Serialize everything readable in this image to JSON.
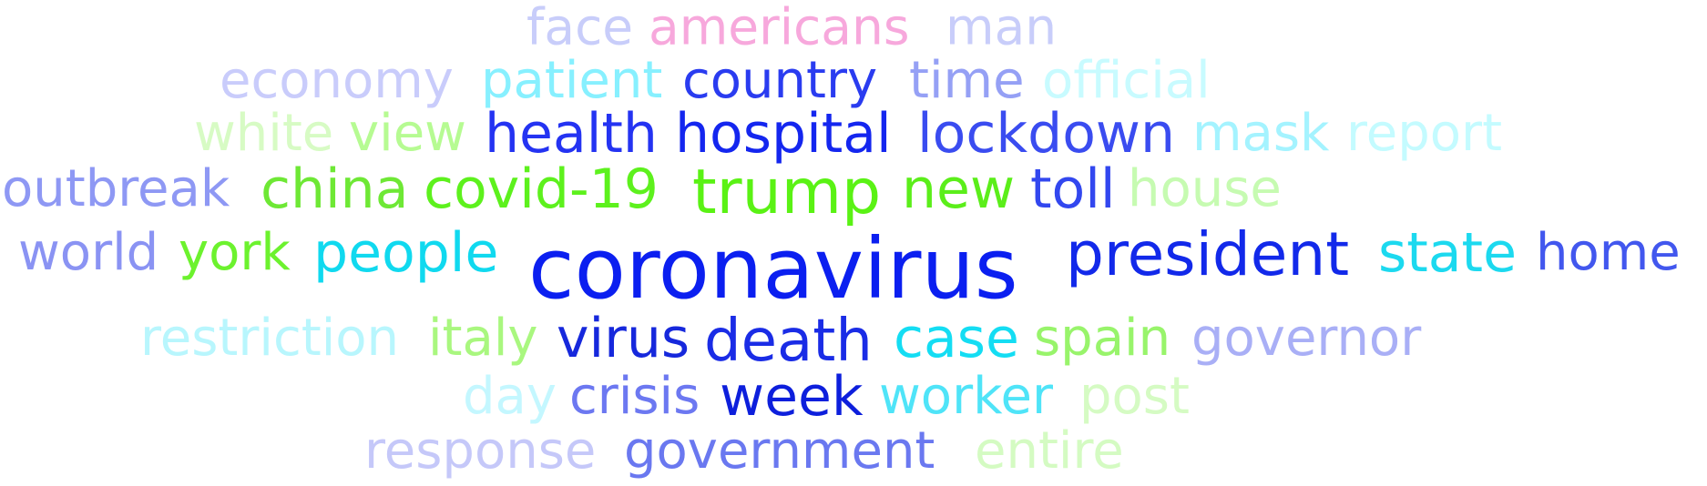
{
  "words": [
    {
      "text": "face",
      "color": "#c8cdfa"
    },
    {
      "text": "americans",
      "color": "#f7a8dc"
    },
    {
      "text": "man",
      "color": "#c8cdfa"
    },
    {
      "text": "economy",
      "color": "#c9ccfb"
    },
    {
      "text": "patient",
      "color": "#87f0ff"
    },
    {
      "text": "country",
      "color": "#2a3cf0"
    },
    {
      "text": "time",
      "color": "#95a0f5"
    },
    {
      "text": "official",
      "color": "#c8fbff"
    },
    {
      "text": "white",
      "color": "#d7fbc4"
    },
    {
      "text": "view",
      "color": "#b6fb92"
    },
    {
      "text": "health",
      "color": "#2433f2"
    },
    {
      "text": "hospital",
      "color": "#1426ef"
    },
    {
      "text": "lockdown",
      "color": "#3a4cf0"
    },
    {
      "text": "mask",
      "color": "#a4f3ff"
    },
    {
      "text": "report",
      "color": "#c4fbff"
    },
    {
      "text": "outbreak",
      "color": "#8e98f4"
    },
    {
      "text": "china",
      "color": "#6ee835"
    },
    {
      "text": "covid-19",
      "color": "#5df11d"
    },
    {
      "text": "trump",
      "color": "#5af214"
    },
    {
      "text": "new",
      "color": "#5bee1a"
    },
    {
      "text": "toll",
      "color": "#3247ef"
    },
    {
      "text": "house",
      "color": "#c6fbb1"
    },
    {
      "text": "world",
      "color": "#8a93f3"
    },
    {
      "text": "york",
      "color": "#6cf22e"
    },
    {
      "text": "people",
      "color": "#10d9ef"
    },
    {
      "text": "coronavirus",
      "color": "#0b1ff0"
    },
    {
      "text": "president",
      "color": "#1229ea"
    },
    {
      "text": "state",
      "color": "#1cd9ef"
    },
    {
      "text": "home",
      "color": "#4257ee"
    },
    {
      "text": "restriction",
      "color": "#b8f6fd"
    },
    {
      "text": "italy",
      "color": "#a9f77f"
    },
    {
      "text": "virus",
      "color": "#1628dc"
    },
    {
      "text": "death",
      "color": "#1a2ce6"
    },
    {
      "text": "case",
      "color": "#14ddf3"
    },
    {
      "text": "spain",
      "color": "#98f46b"
    },
    {
      "text": "governor",
      "color": "#a9aff6"
    },
    {
      "text": "day",
      "color": "#c4f7ff"
    },
    {
      "text": "crisis",
      "color": "#6c78f1"
    },
    {
      "text": "week",
      "color": "#0d1fdc"
    },
    {
      "text": "worker",
      "color": "#4fe4f8"
    },
    {
      "text": "post",
      "color": "#d5fbc3"
    },
    {
      "text": "response",
      "color": "#c5c8f9"
    },
    {
      "text": "government",
      "color": "#6a78f0"
    },
    {
      "text": "entire",
      "color": "#d4fbc2"
    }
  ]
}
